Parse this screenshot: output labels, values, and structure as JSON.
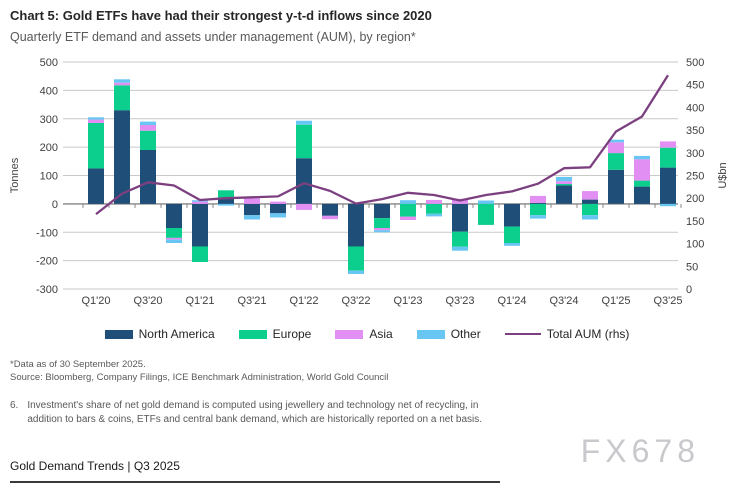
{
  "header": {
    "title": "Chart 5: Gold ETFs have had their strongest y-t-d inflows since 2020",
    "subtitle": "Quarterly ETF demand and assets under management (AUM), by region*"
  },
  "chart_data": {
    "type": "bar",
    "subtype": "stacked bars (left axis, tonnes) with line overlay (right axis, U$bn)",
    "categories": [
      "Q1'20",
      "Q2'20",
      "Q3'20",
      "Q4'20",
      "Q1'21",
      "Q2'21",
      "Q3'21",
      "Q4'21",
      "Q1'22",
      "Q2'22",
      "Q3'22",
      "Q4'22",
      "Q1'23",
      "Q2'23",
      "Q3'23",
      "Q4'23",
      "Q1'24",
      "Q2'24",
      "Q3'24",
      "Q4'24",
      "Q1'25",
      "Q2'25",
      "Q3'25"
    ],
    "x_tick_labels_shown": [
      "Q1'20",
      "Q3'20",
      "Q1'21",
      "Q3'21",
      "Q1'22",
      "Q3'22",
      "Q1'23",
      "Q3'23",
      "Q1'24",
      "Q3'24",
      "Q1'25",
      "Q3'25"
    ],
    "bar_series": [
      {
        "name": "North America",
        "color": "#1F4E78",
        "values": [
          125,
          330,
          190,
          -85,
          -150,
          18,
          -40,
          -33,
          161,
          -42,
          -150,
          -50,
          0,
          0,
          -98,
          0,
          -80,
          3,
          65,
          15,
          120,
          61,
          128
        ]
      },
      {
        "name": "Europe",
        "color": "#0CCE8D",
        "values": [
          160,
          88,
          68,
          -35,
          -55,
          30,
          0,
          0,
          118,
          0,
          -85,
          -35,
          -45,
          -35,
          -53,
          -74,
          -58,
          -40,
          5,
          -40,
          59,
          21,
          70
        ]
      },
      {
        "name": "Asia",
        "color": "#E18FF2",
        "values": [
          12,
          9,
          20,
          -6,
          8,
          0,
          20,
          8,
          -21,
          -12,
          0,
          -8,
          -12,
          14,
          18,
          0,
          0,
          25,
          10,
          30,
          38,
          75,
          22
        ]
      },
      {
        "name": "Other",
        "color": "#68C6F2",
        "values": [
          8,
          12,
          12,
          -12,
          5,
          -6,
          -15,
          -15,
          14,
          0,
          -12,
          -7,
          13,
          -9,
          -14,
          12,
          -10,
          -12,
          15,
          -15,
          9,
          12,
          -8
        ]
      }
    ],
    "line_series": {
      "name": "Total AUM (rhs)",
      "color": "#7C4080",
      "axis": "right",
      "values": [
        165,
        210,
        235,
        228,
        196,
        200,
        202,
        204,
        233,
        216,
        188,
        198,
        212,
        207,
        195,
        207,
        215,
        232,
        266,
        268,
        347,
        380,
        471
      ]
    },
    "left_axis": {
      "label": "Tonnes",
      "min": -300,
      "max": 500,
      "tick_step": 100
    },
    "right_axis": {
      "label": "U$bn",
      "min": 0,
      "max": 500,
      "tick_step": 50
    },
    "grid": true,
    "legend_position": "bottom"
  },
  "footnotes": {
    "data_asof": "*Data as of 30 September 2025.",
    "source": "Source: Bloomberg, Company Filings, ICE Benchmark Administration, World Gold Council",
    "note_number": "6.",
    "note_text": "Investment's share of net gold demand is computed using jewellery and technology net of recycling, in addition to bars & coins, ETFs and central bank demand, which are historically reported on a net basis."
  },
  "watermark": "FX678",
  "footer": {
    "text": "Gold Demand Trends | Q3 2025"
  }
}
